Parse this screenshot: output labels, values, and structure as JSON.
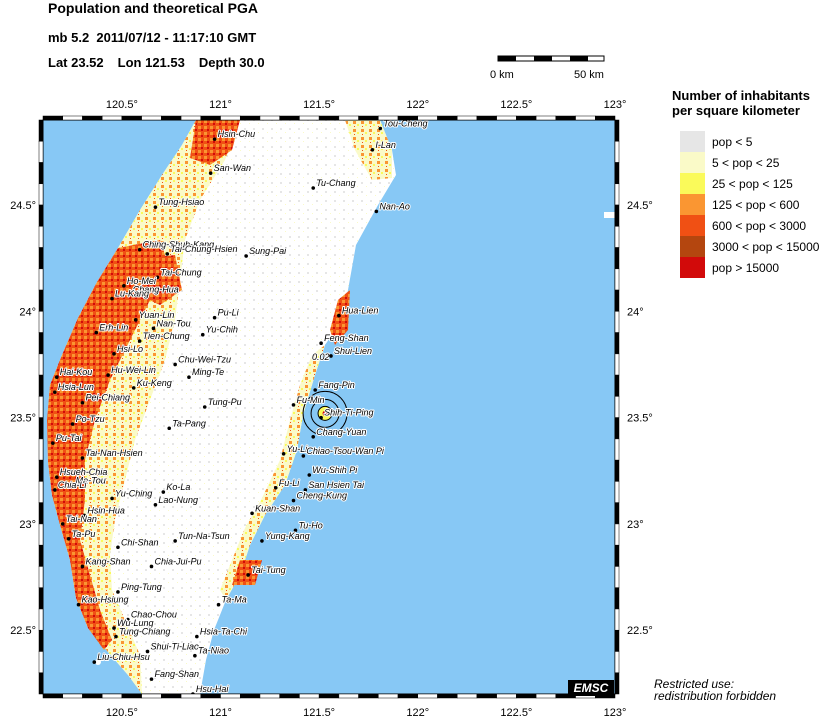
{
  "header": {
    "title": "Population and theoretical PGA",
    "magnitude": "mb 5.2",
    "datetime": "2011/07/12 - 11:17:10 GMT",
    "lat": "Lat 23.52",
    "lon": "Lon 121.53",
    "depth": "Depth  30.0"
  },
  "scale": {
    "left_label": "0 km",
    "right_label": "50 km"
  },
  "axes": {
    "lon_ticks": [
      "120.5°",
      "121°",
      "121.5°",
      "122°",
      "122.5°",
      "123°"
    ],
    "lat_ticks": [
      "24.5°",
      "24°",
      "23.5°",
      "23°",
      "22.5°"
    ]
  },
  "legend": {
    "title_line1": "Number of inhabitants",
    "title_line2": "per square kilometer",
    "items": [
      {
        "label": "pop < 5",
        "color": "#e6e6e6"
      },
      {
        "label": "5 < pop < 25",
        "color": "#fafac8"
      },
      {
        "label": "25 < pop < 125",
        "color": "#fafa5a"
      },
      {
        "label": "125 < pop < 600",
        "color": "#fa9632"
      },
      {
        "label": "600 < pop < 3000",
        "color": "#f05014"
      },
      {
        "label": "3000 < pop < 15000",
        "color": "#b4460f"
      },
      {
        "label": "pop > 15000",
        "color": "#d20a0a"
      }
    ]
  },
  "contour_label": "0.02",
  "cities": [
    {
      "name": "Tou-Cheng",
      "lon": 121.81,
      "lat": 24.86
    },
    {
      "name": "Hsin-Chu",
      "lon": 120.97,
      "lat": 24.81
    },
    {
      "name": "I-Lan",
      "lon": 121.77,
      "lat": 24.76
    },
    {
      "name": "San-Wan",
      "lon": 120.95,
      "lat": 24.65
    },
    {
      "name": "Tu-Chang",
      "lon": 121.47,
      "lat": 24.58
    },
    {
      "name": "Tung-Hsiao",
      "lon": 120.67,
      "lat": 24.49
    },
    {
      "name": "Nan-Ao",
      "lon": 121.79,
      "lat": 24.47
    },
    {
      "name": "Ching-Shuh-Kang",
      "lon": 120.59,
      "lat": 24.29
    },
    {
      "name": "Tai-Chung-Hsien",
      "lon": 120.73,
      "lat": 24.27
    },
    {
      "name": "Sung-Pai",
      "lon": 121.13,
      "lat": 24.26
    },
    {
      "name": "Tai-Chung",
      "lon": 120.68,
      "lat": 24.16
    },
    {
      "name": "Ho-Mei",
      "lon": 120.51,
      "lat": 24.12
    },
    {
      "name": "Chang-Hua",
      "lon": 120.54,
      "lat": 24.08
    },
    {
      "name": "Lu-Kang",
      "lon": 120.45,
      "lat": 24.06
    },
    {
      "name": "Hua-Lien",
      "lon": 121.6,
      "lat": 23.98
    },
    {
      "name": "Yuan-Lin",
      "lon": 120.57,
      "lat": 23.96
    },
    {
      "name": "Pu-Li",
      "lon": 120.97,
      "lat": 23.97
    },
    {
      "name": "Nan-Tou",
      "lon": 120.66,
      "lat": 23.92
    },
    {
      "name": "Yu-Chih",
      "lon": 120.91,
      "lat": 23.89
    },
    {
      "name": "Erh-Lin",
      "lon": 120.37,
      "lat": 23.9
    },
    {
      "name": "Tien-Chung",
      "lon": 120.59,
      "lat": 23.86
    },
    {
      "name": "Feng-Shan",
      "lon": 121.51,
      "lat": 23.85
    },
    {
      "name": "Shui-Lien",
      "lon": 121.56,
      "lat": 23.79
    },
    {
      "name": "Hsi-Lo",
      "lon": 120.46,
      "lat": 23.8
    },
    {
      "name": "Chu-Wei-Tzu",
      "lon": 120.77,
      "lat": 23.75
    },
    {
      "name": "Hai-Kou",
      "lon": 120.17,
      "lat": 23.69
    },
    {
      "name": "Hu-Wei-Lin",
      "lon": 120.43,
      "lat": 23.7
    },
    {
      "name": "Ming-Te",
      "lon": 120.84,
      "lat": 23.69
    },
    {
      "name": "Fang-Pin",
      "lon": 121.48,
      "lat": 23.63
    },
    {
      "name": "Ku-Keng",
      "lon": 120.56,
      "lat": 23.64
    },
    {
      "name": "Hsia-Lun",
      "lon": 120.16,
      "lat": 23.62
    },
    {
      "name": "Pei-Chiang",
      "lon": 120.3,
      "lat": 23.57
    },
    {
      "name": "Fu-Min",
      "lon": 121.37,
      "lat": 23.56
    },
    {
      "name": "Tung-Pu",
      "lon": 120.92,
      "lat": 23.55
    },
    {
      "name": "Shih-Ti-Ping",
      "lon": 121.51,
      "lat": 23.5
    },
    {
      "name": "Po-Tzu",
      "lon": 120.25,
      "lat": 23.47
    },
    {
      "name": "Ta-Pang",
      "lon": 120.74,
      "lat": 23.45
    },
    {
      "name": "Chang-Yuan",
      "lon": 121.47,
      "lat": 23.41
    },
    {
      "name": "Pu-Tai",
      "lon": 120.15,
      "lat": 23.38
    },
    {
      "name": "Yu-Li",
      "lon": 121.32,
      "lat": 23.33
    },
    {
      "name": "Chiao-Tsou-Wan Pi",
      "lon": 121.42,
      "lat": 23.32
    },
    {
      "name": "Tai-Nan-Hsien",
      "lon": 120.3,
      "lat": 23.31
    },
    {
      "name": "Wu-Shih Pi",
      "lon": 121.45,
      "lat": 23.23
    },
    {
      "name": "Hsueh-Chia",
      "lon": 120.17,
      "lat": 23.22
    },
    {
      "name": "Ma-Tou",
      "lon": 120.25,
      "lat": 23.18
    },
    {
      "name": "Chia-Li",
      "lon": 120.16,
      "lat": 23.16
    },
    {
      "name": "Fu-Li",
      "lon": 121.28,
      "lat": 23.17
    },
    {
      "name": "San Hsien Tai",
      "lon": 121.43,
      "lat": 23.16
    },
    {
      "name": "Ko-La",
      "lon": 120.71,
      "lat": 23.15
    },
    {
      "name": "Yu-Ching",
      "lon": 120.45,
      "lat": 23.12
    },
    {
      "name": "Cheng-Kung",
      "lon": 121.37,
      "lat": 23.11
    },
    {
      "name": "Lao-Nung",
      "lon": 120.67,
      "lat": 23.09
    },
    {
      "name": "Hsin-Hua",
      "lon": 120.31,
      "lat": 23.04
    },
    {
      "name": "Kuan-Shan",
      "lon": 121.16,
      "lat": 23.05
    },
    {
      "name": "Tai-Nan",
      "lon": 120.2,
      "lat": 23.0
    },
    {
      "name": "Tu-Ho",
      "lon": 121.38,
      "lat": 22.97
    },
    {
      "name": "Tun-Na-Tsun",
      "lon": 120.77,
      "lat": 22.92
    },
    {
      "name": "Yung-Kang",
      "lon": 121.21,
      "lat": 22.92
    },
    {
      "name": "Ta-Pu",
      "lon": 120.23,
      "lat": 22.93
    },
    {
      "name": "Chi-Shan",
      "lon": 120.48,
      "lat": 22.89
    },
    {
      "name": "Kang-Shan",
      "lon": 120.3,
      "lat": 22.8
    },
    {
      "name": "Chia-Jui-Pu",
      "lon": 120.65,
      "lat": 22.8
    },
    {
      "name": "Tai-Tung",
      "lon": 121.14,
      "lat": 22.76
    },
    {
      "name": "Ping-Tung",
      "lon": 120.48,
      "lat": 22.68
    },
    {
      "name": "Kao-Hsiung",
      "lon": 120.28,
      "lat": 22.62
    },
    {
      "name": "Ta-Ma",
      "lon": 120.99,
      "lat": 22.62
    },
    {
      "name": "Chao-Chou",
      "lon": 120.53,
      "lat": 22.55
    },
    {
      "name": "Wu-Lung",
      "lon": 120.46,
      "lat": 22.51
    },
    {
      "name": "Hsia-Ta-Chi",
      "lon": 120.88,
      "lat": 22.47
    },
    {
      "name": "Tung-Chiang",
      "lon": 120.47,
      "lat": 22.47
    },
    {
      "name": "Shui-Ti-Liao",
      "lon": 120.63,
      "lat": 22.4
    },
    {
      "name": "Ta-Niao",
      "lon": 120.87,
      "lat": 22.38
    },
    {
      "name": "Liu-Chiu-Hsu",
      "lon": 120.36,
      "lat": 22.35
    },
    {
      "name": "Fang-Shan",
      "lon": 120.65,
      "lat": 22.27
    },
    {
      "name": "Hsu-Hai",
      "lon": 120.86,
      "lat": 22.2
    }
  ],
  "epicenter": {
    "lon": 121.53,
    "lat": 23.52
  },
  "watermark": "EMSC",
  "restricted_line1": "Restricted use:",
  "restricted_line2": "redistribution forbidden",
  "colors": {
    "sea": "#87c8f5",
    "land": "#ffffff"
  }
}
